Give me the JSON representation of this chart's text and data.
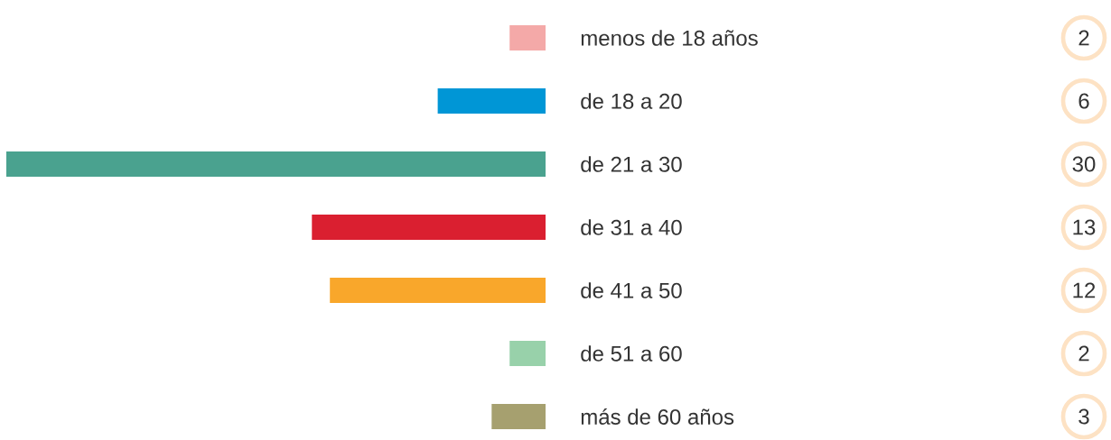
{
  "chart_data": {
    "type": "bar",
    "orientation": "horizontal",
    "categories": [
      "menos de 18 años",
      "de 18 a 20",
      "de 21 a 30",
      "de 31 a 40",
      "de 41 a 50",
      "de 51 a 60",
      "más de 60 años"
    ],
    "values": [
      2,
      6,
      30,
      13,
      12,
      2,
      3
    ],
    "colors": [
      "#f4a9a8",
      "#0096d6",
      "#4aa28f",
      "#da1f30",
      "#f9a72b",
      "#98d1aa",
      "#a6a06f"
    ],
    "value_labels": [
      "2",
      "6",
      "30",
      "13",
      "12",
      "2",
      "3"
    ],
    "xlim": [
      30,
      0
    ]
  }
}
